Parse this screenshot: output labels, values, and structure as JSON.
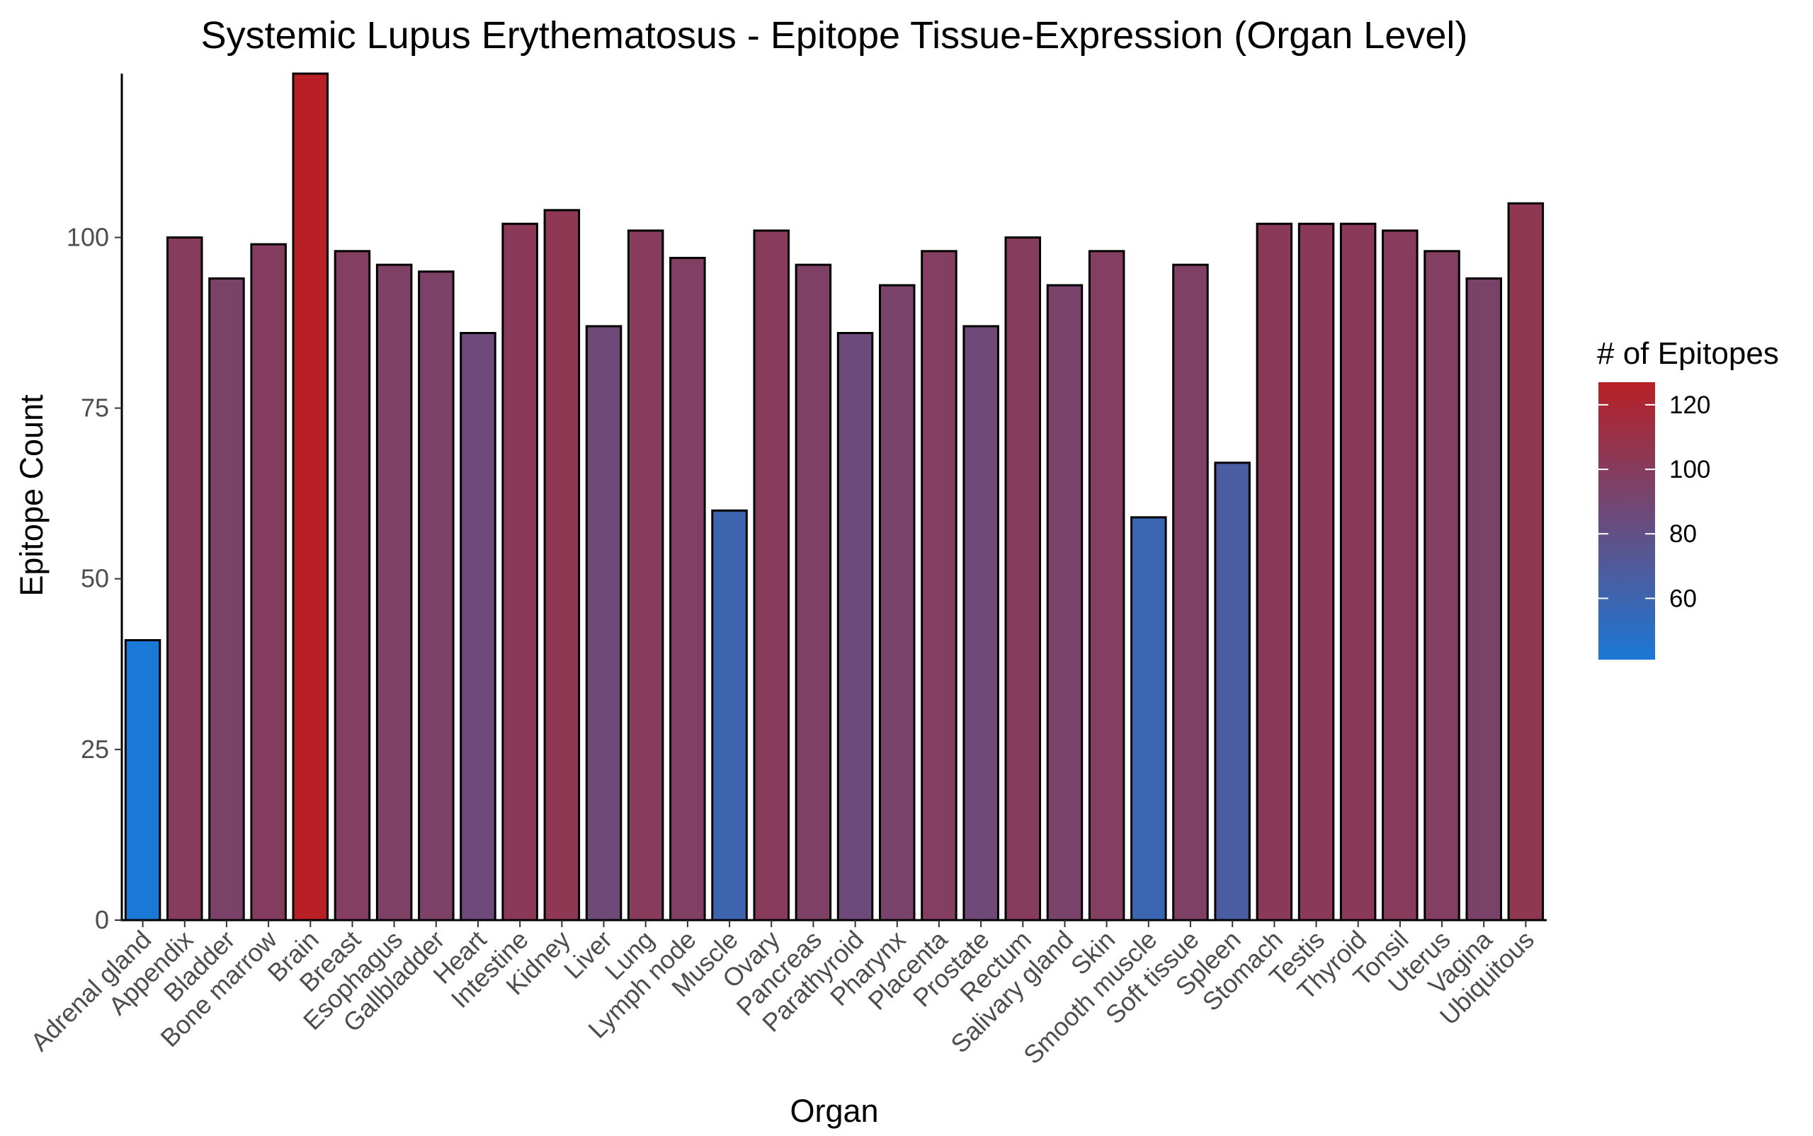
{
  "chart_data": {
    "type": "bar",
    "title": "Systemic Lupus Erythematosus - Epitope Tissue-Expression (Organ Level)",
    "xlabel": "Organ",
    "ylabel": "Epitope Count",
    "ylim": [
      0,
      124
    ],
    "yticks": [
      0,
      25,
      50,
      75,
      100
    ],
    "ytick_labels": [
      "0",
      "25",
      "50",
      "75",
      "100"
    ],
    "grid": false,
    "categories": [
      "Adrenal gland",
      "Appendix",
      "Bladder",
      "Bone marrow",
      "Brain",
      "Breast",
      "Esophagus",
      "Gallbladder",
      "Heart",
      "Intestine",
      "Kidney",
      "Liver",
      "Lung",
      "Lymph node",
      "Muscle",
      "Ovary",
      "Pancreas",
      "Parathyroid",
      "Pharynx",
      "Placenta",
      "Prostate",
      "Rectum",
      "Salivary gland",
      "Skin",
      "Smooth muscle",
      "Soft tissue",
      "Spleen",
      "Stomach",
      "Testis",
      "Thyroid",
      "Tonsil",
      "Uterus",
      "Vagina",
      "Ubiquitous"
    ],
    "values": [
      41,
      100,
      94,
      99,
      127,
      98,
      96,
      95,
      86,
      102,
      104,
      87,
      101,
      97,
      60,
      101,
      96,
      86,
      93,
      98,
      87,
      100,
      93,
      98,
      59,
      96,
      67,
      102,
      102,
      102,
      101,
      98,
      94,
      105
    ],
    "legend": {
      "title": "# of Epitopes",
      "position": "right",
      "type": "gradient",
      "ticks": [
        60,
        80,
        100,
        120
      ],
      "tick_labels": [
        "60",
        "80",
        "100",
        "120"
      ],
      "range": [
        41,
        127
      ],
      "low_color": "#1a78d6",
      "high_color": "#b82025"
    },
    "bar_outline_color": "#000000",
    "axis_line_color": "#000000"
  }
}
